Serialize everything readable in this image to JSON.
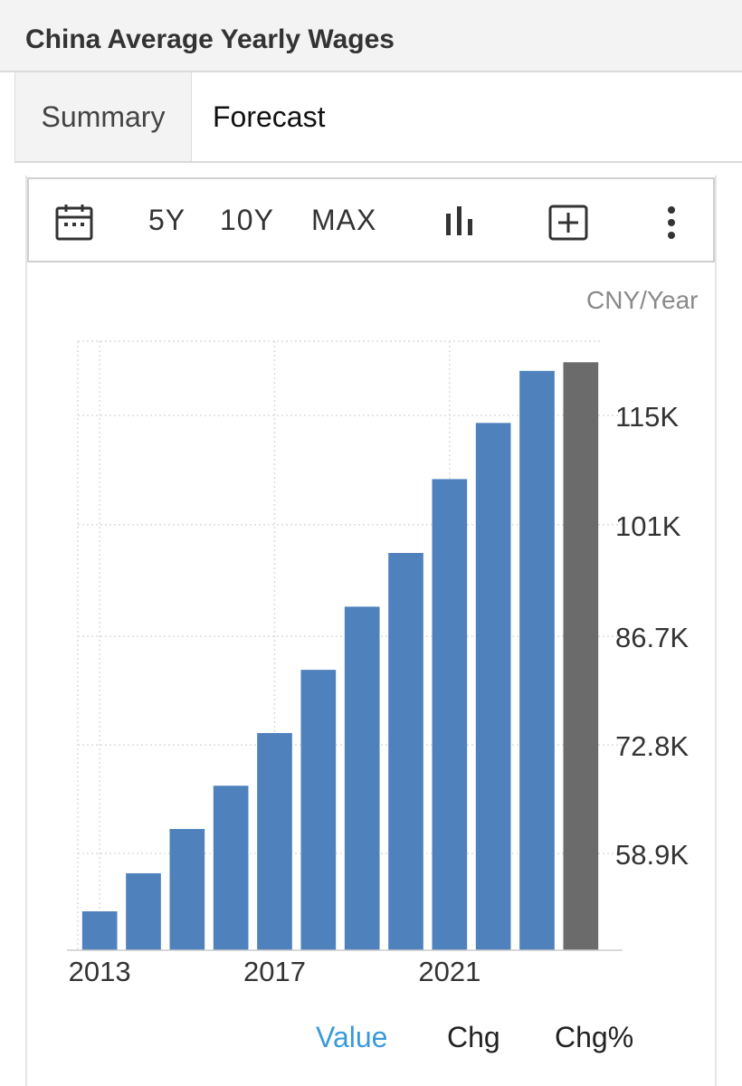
{
  "header": {
    "title": "China Average Yearly Wages"
  },
  "tabs": [
    {
      "label": "Summary"
    },
    {
      "label": "Forecast"
    }
  ],
  "toolbar": {
    "calendar_icon": "calendar-icon",
    "range_buttons": [
      "5Y",
      "10Y",
      "MAX"
    ],
    "chart_type_icon": "bar-chart-icon",
    "add_icon": "plus-box-icon",
    "more_icon": "vertical-dots-icon"
  },
  "unit_label": "CNY/Year",
  "legend": {
    "value": "Value",
    "chg": "Chg",
    "chg_pct": "Chg%"
  },
  "colors": {
    "bar": "#4f81bd",
    "forecast_bar": "#6b6b6b",
    "active_legend": "#3a9ad9",
    "text": "#333333"
  },
  "chart_data": {
    "type": "bar",
    "categories": [
      "2013",
      "2014",
      "2015",
      "2016",
      "2017",
      "2018",
      "2019",
      "2020",
      "2021",
      "2022",
      "2023",
      "2024"
    ],
    "values": [
      51483,
      56360,
      62029,
      67569,
      74318,
      82413,
      90501,
      97379,
      106837,
      114029,
      120698,
      121800
    ],
    "forecast_index": 11,
    "x_tick_labels": [
      "2013",
      "2017",
      "2021"
    ],
    "y_tick_values": [
      58900,
      72800,
      86700,
      101000,
      115000
    ],
    "y_tick_labels": [
      "58.9K",
      "72.8K",
      "86.7K",
      "101K",
      "115K"
    ],
    "ylim": [
      46500,
      124500
    ],
    "ylabel": "CNY/Year",
    "grid": true
  }
}
